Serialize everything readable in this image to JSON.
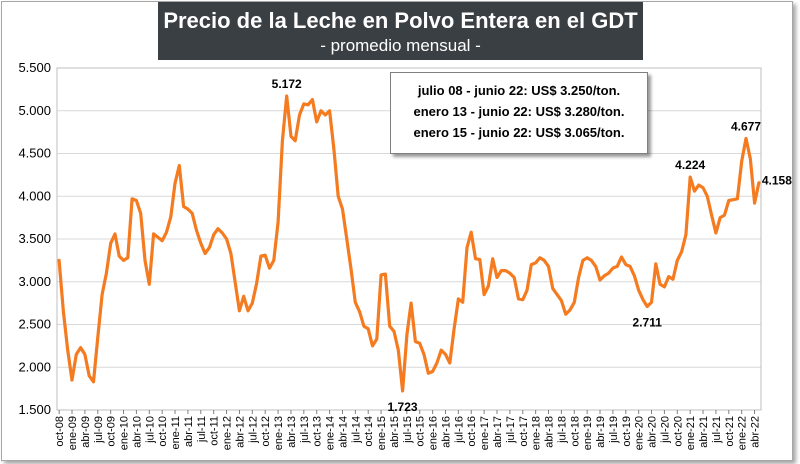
{
  "chart_data": {
    "type": "line",
    "title": "Precio de la Leche en Polvo Entera en el GDT",
    "subtitle": "- promedio mensual -",
    "ylim": [
      1500,
      5500
    ],
    "y_ticks": [
      "1.500",
      "2.000",
      "2.500",
      "3.000",
      "3.500",
      "4.000",
      "4.500",
      "5.000",
      "5.500"
    ],
    "x_ticks": [
      "oct-08",
      "ene-09",
      "abr-09",
      "jul-09",
      "oct-09",
      "ene-10",
      "abr-10",
      "jul-10",
      "oct-10",
      "ene-11",
      "abr-11",
      "jul-11",
      "oct-11",
      "ene-12",
      "abr-12",
      "jul-12",
      "oct-12",
      "ene-13",
      "abr-13",
      "jul-13",
      "oct-13",
      "ene-14",
      "abr-14",
      "jul-14",
      "oct-14",
      "ene-15",
      "abr-15",
      "jul-15",
      "oct-15",
      "ene-16",
      "abr-16",
      "jul-16",
      "oct-16",
      "ene-17",
      "abr-17",
      "jul-17",
      "oct-17",
      "ene-18",
      "abr-18",
      "jul-18",
      "oct-18",
      "ene-19",
      "abr-19",
      "jul-19",
      "oct-19",
      "ene-20",
      "abr-20",
      "jul-20",
      "oct-20",
      "ene-21",
      "abr-21",
      "jul-21",
      "oct-21",
      "ene-22",
      "abr-22"
    ],
    "grid": true,
    "line_color": "#f47b20",
    "series": [
      {
        "values": [
          3250,
          2650,
          2200,
          1850,
          2150,
          2230,
          2150,
          1900,
          1830,
          2350,
          2850,
          3100,
          3450,
          3560,
          3300,
          3250,
          3280,
          3970,
          3950,
          3800,
          3250,
          2970,
          3560,
          3520,
          3480,
          3580,
          3760,
          4150,
          4360,
          3880,
          3850,
          3800,
          3600,
          3450,
          3330,
          3400,
          3550,
          3620,
          3570,
          3500,
          3330,
          3000,
          2660,
          2830,
          2660,
          2750,
          2980,
          3300,
          3310,
          3160,
          3250,
          3700,
          4650,
          5172,
          4700,
          4650,
          4950,
          5080,
          5070,
          5130,
          4870,
          5000,
          4950,
          5000,
          4550,
          4000,
          3850,
          3500,
          3150,
          2760,
          2650,
          2480,
          2450,
          2250,
          2330,
          3080,
          3090,
          2480,
          2420,
          2200,
          1723,
          2380,
          2750,
          2300,
          2280,
          2150,
          1930,
          1950,
          2050,
          2200,
          2150,
          2050,
          2450,
          2800,
          2760,
          3400,
          3580,
          3270,
          3260,
          2850,
          2950,
          3270,
          3050,
          3130,
          3130,
          3100,
          3050,
          2800,
          2790,
          2900,
          3200,
          3220,
          3280,
          3250,
          3180,
          2920,
          2850,
          2780,
          2620,
          2670,
          2760,
          3050,
          3250,
          3280,
          3250,
          3180,
          3020,
          3070,
          3100,
          3160,
          3180,
          3290,
          3200,
          3180,
          3070,
          2900,
          2790,
          2711,
          2760,
          3210,
          2970,
          2940,
          3060,
          3030,
          3250,
          3350,
          3550,
          4224,
          4060,
          4130,
          4100,
          4000,
          3780,
          3570,
          3750,
          3780,
          3950,
          3960,
          3970,
          4410,
          4677,
          4440,
          3920,
          4158
        ]
      }
    ],
    "annotations": [
      {
        "label": "5.172",
        "index": 53
      },
      {
        "label": "1.723",
        "index": 80
      },
      {
        "label": "2.711",
        "index": 137
      },
      {
        "label": "4.224",
        "index": 147
      },
      {
        "label": "4.677",
        "index": 160
      },
      {
        "label": "4.158",
        "index": 163
      }
    ],
    "notes": [
      "julio 08 - junio 22: US$ 3.250/ton.",
      "enero 13 - junio 22: US$ 3.280/ton.",
      "enero 15 - junio 22: US$ 3.065/ton."
    ]
  }
}
